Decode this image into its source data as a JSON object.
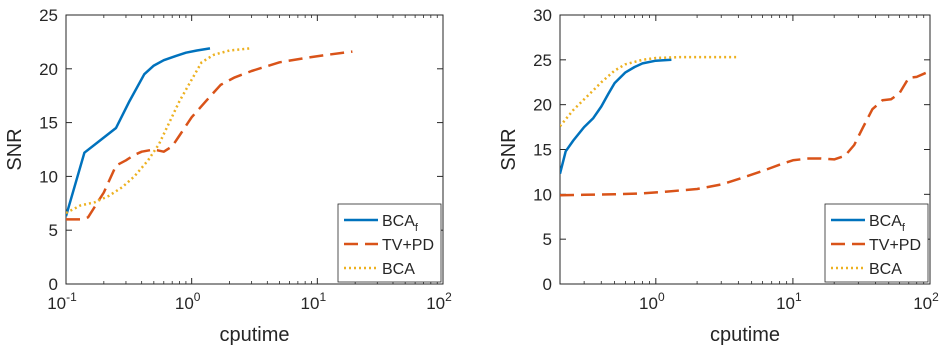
{
  "chart_data": [
    {
      "type": "line",
      "xscale": "log",
      "xlim": [
        0.1,
        100
      ],
      "ylim": [
        0,
        25
      ],
      "xlabel": "cputime",
      "ylabel": "SNR",
      "yticks": [
        "0",
        "5",
        "10",
        "15",
        "20",
        "25"
      ],
      "xticks": [
        {
          "base": "10",
          "exp": "-1",
          "value": 0.1
        },
        {
          "base": "10",
          "exp": "0",
          "value": 1
        },
        {
          "base": "10",
          "exp": "1",
          "value": 10
        },
        {
          "base": "10",
          "exp": "2",
          "value": 100
        }
      ],
      "legend_position": "bottom-right",
      "series": [
        {
          "name": "BCA",
          "subscript": "f",
          "color": "#0072bd",
          "dash": "solid",
          "x": [
            0.1,
            0.14,
            0.18,
            0.25,
            0.32,
            0.42,
            0.5,
            0.6,
            0.75,
            0.9,
            1.1,
            1.4
          ],
          "y": [
            6.3,
            12.2,
            13.2,
            14.5,
            17.0,
            19.5,
            20.3,
            20.8,
            21.2,
            21.5,
            21.7,
            21.9
          ]
        },
        {
          "name": "TV+PD",
          "subscript": "",
          "color": "#d95319",
          "dash": "dashed",
          "x": [
            0.1,
            0.13,
            0.15,
            0.2,
            0.25,
            0.3,
            0.35,
            0.4,
            0.5,
            0.6,
            0.7,
            0.8,
            1.0,
            1.3,
            1.7,
            2.2,
            3,
            5,
            8,
            12,
            19
          ],
          "y": [
            6.0,
            6.0,
            6.2,
            8.5,
            11.0,
            11.5,
            12.0,
            12.3,
            12.5,
            12.3,
            12.8,
            13.8,
            15.5,
            17.0,
            18.5,
            19.2,
            19.8,
            20.6,
            21.0,
            21.3,
            21.6
          ]
        },
        {
          "name": "BCA",
          "subscript": "",
          "color": "#edb120",
          "dash": "dotted",
          "x": [
            0.1,
            0.13,
            0.17,
            0.22,
            0.28,
            0.35,
            0.45,
            0.55,
            0.65,
            0.8,
            1.0,
            1.2,
            1.5,
            2.0,
            2.9
          ],
          "y": [
            6.6,
            7.3,
            7.6,
            8.2,
            9.0,
            10.0,
            11.5,
            13.0,
            14.8,
            17.0,
            19.0,
            20.6,
            21.3,
            21.7,
            21.9
          ]
        }
      ]
    },
    {
      "type": "line",
      "xscale": "log",
      "xlim": [
        0.2,
        100
      ],
      "ylim": [
        0,
        30
      ],
      "xlabel": "cputime",
      "ylabel": "SNR",
      "yticks": [
        "0",
        "5",
        "10",
        "15",
        "20",
        "25",
        "30"
      ],
      "xticks": [
        {
          "base": "10",
          "exp": "0",
          "value": 1
        },
        {
          "base": "10",
          "exp": "1",
          "value": 10
        },
        {
          "base": "10",
          "exp": "2",
          "value": 100
        }
      ],
      "legend_position": "bottom-right",
      "series": [
        {
          "name": "BCA",
          "subscript": "f",
          "color": "#0072bd",
          "dash": "solid",
          "x": [
            0.2,
            0.22,
            0.25,
            0.3,
            0.35,
            0.4,
            0.45,
            0.5,
            0.6,
            0.7,
            0.8,
            1.0,
            1.3
          ],
          "y": [
            12.3,
            14.8,
            16.0,
            17.5,
            18.5,
            19.8,
            21.2,
            22.4,
            23.6,
            24.2,
            24.6,
            24.9,
            25.0
          ]
        },
        {
          "name": "TV+PD",
          "subscript": "",
          "color": "#d95319",
          "dash": "dashed",
          "x": [
            0.2,
            0.3,
            0.5,
            0.8,
            1.2,
            2,
            3,
            4,
            6,
            8,
            10,
            13,
            16,
            20,
            24,
            28,
            32,
            38,
            45,
            52,
            60,
            70,
            80,
            95
          ],
          "y": [
            9.9,
            9.95,
            10.0,
            10.1,
            10.3,
            10.6,
            11.1,
            11.7,
            12.6,
            13.3,
            13.8,
            14.0,
            14.0,
            13.9,
            14.3,
            15.5,
            17.3,
            19.5,
            20.5,
            20.6,
            21.3,
            23.0,
            23.1,
            23.6
          ]
        },
        {
          "name": "BCA",
          "subscript": "",
          "color": "#edb120",
          "dash": "dotted",
          "x": [
            0.2,
            0.25,
            0.3,
            0.35,
            0.4,
            0.5,
            0.6,
            0.8,
            1.0,
            1.5,
            2,
            3,
            4
          ],
          "y": [
            17.6,
            19.4,
            20.6,
            21.6,
            22.5,
            23.8,
            24.5,
            25.0,
            25.2,
            25.3,
            25.3,
            25.3,
            25.3
          ]
        }
      ]
    }
  ]
}
